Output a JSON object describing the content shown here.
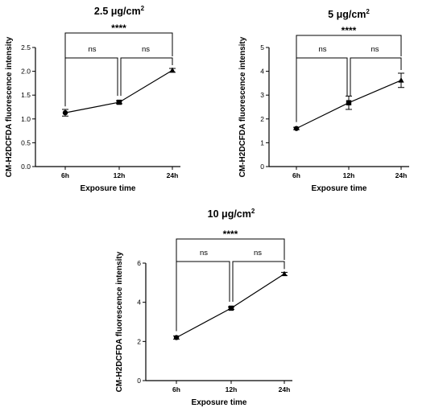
{
  "chart_data": [
    {
      "type": "line",
      "title": "2.5 μg/cm",
      "title_sup": "2",
      "xlabel": "Exposure time",
      "ylabel": "CM-H2DCFDA fluorescence intensity",
      "categories": [
        "6h",
        "12h",
        "24h"
      ],
      "series": [
        {
          "values": [
            1.13,
            1.35,
            2.02
          ],
          "errors": [
            0.07,
            0.03,
            0.04
          ],
          "markers": [
            "circle",
            "square",
            "triangle"
          ]
        }
      ],
      "ylim": [
        0,
        2.5
      ],
      "yticks": [
        "0.0",
        "0.5",
        "1.0",
        "1.5",
        "2.0",
        "2.5"
      ],
      "significance": {
        "pairwise": [
          "ns",
          "ns"
        ],
        "overall": "****"
      }
    },
    {
      "type": "line",
      "title": "5 μg/cm",
      "title_sup": "2",
      "xlabel": "Exposure time",
      "ylabel": "CM-H2DCFDA fluorescence intensity",
      "categories": [
        "6h",
        "12h",
        "24h"
      ],
      "series": [
        {
          "values": [
            1.6,
            2.68,
            3.62
          ],
          "errors": [
            0.05,
            0.28,
            0.3
          ],
          "markers": [
            "circle",
            "square",
            "triangle"
          ]
        }
      ],
      "ylim": [
        0,
        5
      ],
      "yticks": [
        "0",
        "1",
        "2",
        "3",
        "4",
        "5"
      ],
      "significance": {
        "pairwise": [
          "ns",
          "ns"
        ],
        "overall": "****"
      }
    },
    {
      "type": "line",
      "title": "10 μg/cm",
      "title_sup": "2",
      "xlabel": "Exposure time",
      "ylabel": "CM-H2DCFDA fluorescence intensity",
      "categories": [
        "6h",
        "12h",
        "24h"
      ],
      "series": [
        {
          "values": [
            2.2,
            3.7,
            5.45
          ],
          "errors": [
            0.08,
            0.06,
            0.08
          ],
          "markers": [
            "circle",
            "square",
            "triangle"
          ]
        }
      ],
      "ylim": [
        0,
        6
      ],
      "yticks": [
        "0",
        "2",
        "4",
        "6"
      ],
      "significance": {
        "pairwise": [
          "ns",
          "ns"
        ],
        "overall": "****"
      }
    }
  ]
}
